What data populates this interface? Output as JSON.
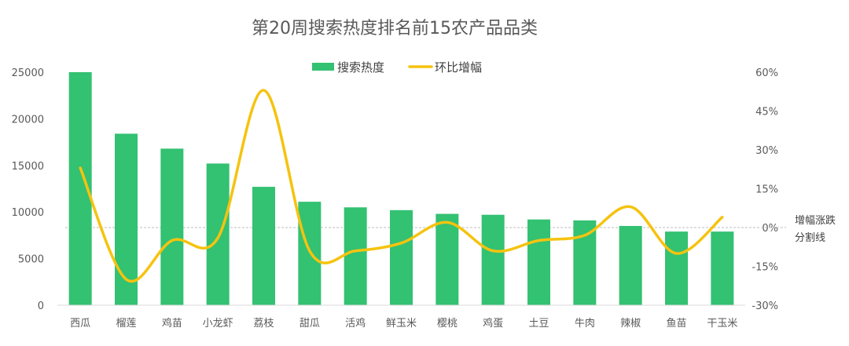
{
  "chart_data": {
    "type": "bar",
    "title": "第20周搜索热度排名前15农产品品类",
    "categories": [
      "西瓜",
      "榴莲",
      "鸡苗",
      "小龙虾",
      "荔枝",
      "甜瓜",
      "活鸡",
      "鲜玉米",
      "樱桃",
      "鸡蛋",
      "土豆",
      "牛肉",
      "辣椒",
      "鱼苗",
      "干玉米"
    ],
    "series": [
      {
        "name": "搜索热度",
        "type": "bar",
        "axis": "left",
        "color": "#33c172",
        "values": [
          25000,
          18400,
          16800,
          15200,
          12700,
          11100,
          10500,
          10200,
          9800,
          9700,
          9200,
          9100,
          8500,
          7900,
          7900
        ]
      },
      {
        "name": "环比增幅",
        "type": "line",
        "axis": "right",
        "color": "#f5c30f",
        "values": [
          23,
          -20,
          -5,
          -4,
          53,
          -9,
          -9,
          -6,
          2,
          -9,
          -5,
          -3,
          8,
          -10,
          4
        ]
      }
    ],
    "y_left": {
      "min": 0,
      "max": 25000,
      "ticks": [
        "0",
        "5000",
        "10000",
        "15000",
        "20000",
        "25000"
      ]
    },
    "y_right": {
      "min": -30,
      "max": 60,
      "ticks": [
        "-30%",
        "-15%",
        "0%",
        "15%",
        "30%",
        "45%",
        "60%"
      ]
    },
    "legend_position": "top-center",
    "reference_line": {
      "value": 0,
      "axis": "right",
      "label_line1": "增幅涨跌",
      "label_line2": "分割线"
    }
  }
}
